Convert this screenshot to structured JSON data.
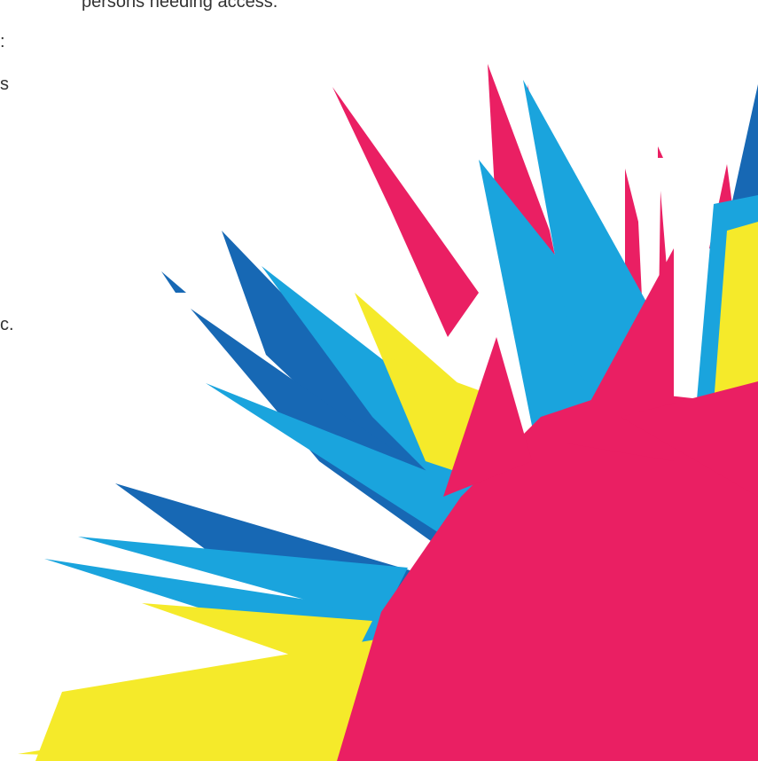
{
  "text": {
    "top_line": "persons needing access.",
    "fragments": [
      ":",
      "s",
      "c."
    ]
  },
  "graphic": {
    "name": "colorful-burst",
    "colors": {
      "magenta": "#ea1f63",
      "cyan": "#1aa4dd",
      "blue": "#1768b4",
      "yellow": "#f5ea2a"
    }
  }
}
